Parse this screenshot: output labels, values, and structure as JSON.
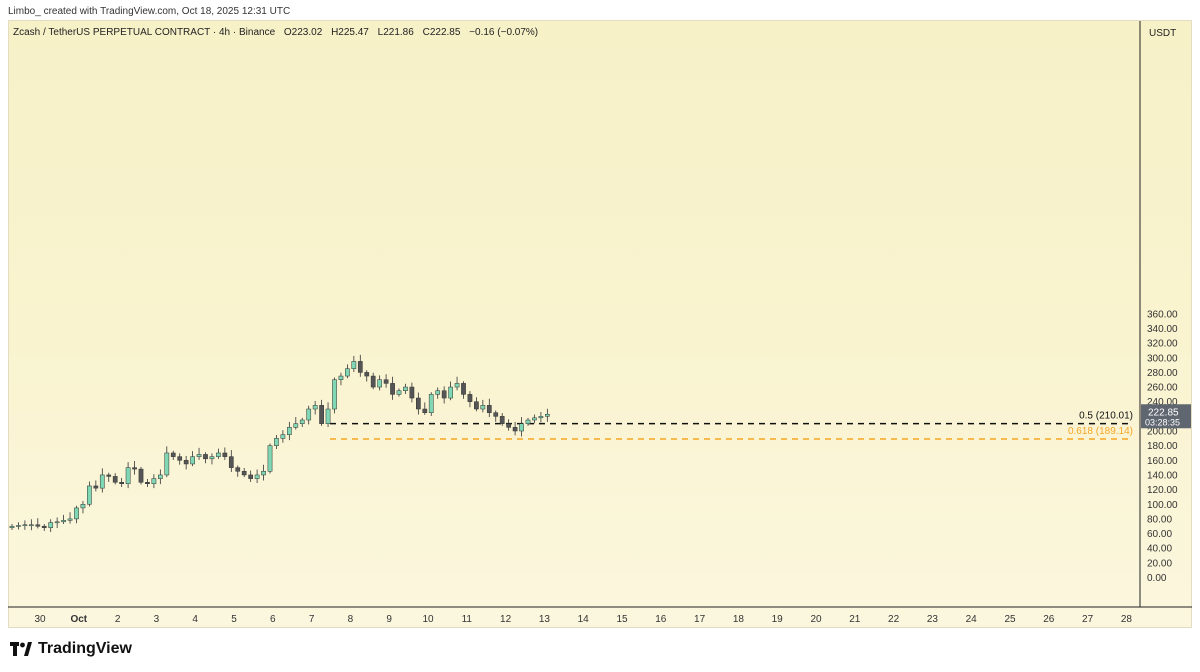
{
  "header": {
    "text": "Limbo_ created with TradingView.com, Oct 18, 2025 12:31 UTC"
  },
  "legend": {
    "symbol": "Zcash / TetherUS PERPETUAL CONTRACT · 4h · Binance",
    "open": "O223.02",
    "high": "H225.47",
    "low": "L221.86",
    "close": "C222.85",
    "change": "−0.16 (−0.07%)"
  },
  "brand": {
    "name": "TradingView"
  },
  "colors": {
    "up": "#7fd7b4",
    "down": "#555555",
    "level_05": "#111111",
    "level_0618": "#f5a623"
  },
  "chart_data": {
    "type": "candlestick",
    "currency": "USDT",
    "last_price": "222.85",
    "countdown": "03:28:35",
    "y_ticks": [
      0,
      20,
      40,
      60,
      80,
      100,
      120,
      140,
      160,
      180,
      200,
      220,
      240,
      260,
      280,
      300,
      320,
      340,
      360
    ],
    "y_tick_labels": [
      "0.00",
      "20.00",
      "40.00",
      "60.00",
      "80.00",
      "100.00",
      "120.00",
      "140.00",
      "160.00",
      "180.00",
      "200.00",
      "220.00",
      "240.00",
      "260.00",
      "280.00",
      "300.00",
      "320.00",
      "340.00",
      "360.00"
    ],
    "ylim": [
      -20,
      370
    ],
    "x_ticks": [
      "30",
      "Oct",
      "2",
      "3",
      "4",
      "5",
      "6",
      "7",
      "8",
      "9",
      "10",
      "11",
      "12",
      "13",
      "14",
      "15",
      "16",
      "17",
      "18",
      "19",
      "20",
      "21",
      "22",
      "23",
      "24",
      "25",
      "26",
      "27",
      "28"
    ],
    "levels": [
      {
        "label": "0.5 (210.01)",
        "value": 210.01,
        "color": "#111111"
      },
      {
        "label": "0.618 (189.14)",
        "value": 189.14,
        "color": "#f5a623"
      }
    ],
    "closes": [
      70,
      71,
      72,
      72,
      70,
      68,
      75,
      76,
      78,
      80,
      95,
      100,
      125,
      122,
      140,
      138,
      130,
      128,
      150,
      148,
      130,
      128,
      135,
      140,
      170,
      165,
      160,
      155,
      165,
      168,
      162,
      165,
      170,
      165,
      150,
      145,
      140,
      135,
      140,
      145,
      180,
      190,
      195,
      205,
      210,
      215,
      230,
      235,
      210,
      230,
      270,
      275,
      285,
      295,
      280,
      275,
      260,
      270,
      265,
      250,
      255,
      260,
      245,
      230,
      225,
      250,
      255,
      245,
      260,
      265,
      250,
      240,
      230,
      235,
      225,
      220,
      210,
      205,
      200,
      210,
      215,
      218,
      220,
      222.85
    ]
  }
}
